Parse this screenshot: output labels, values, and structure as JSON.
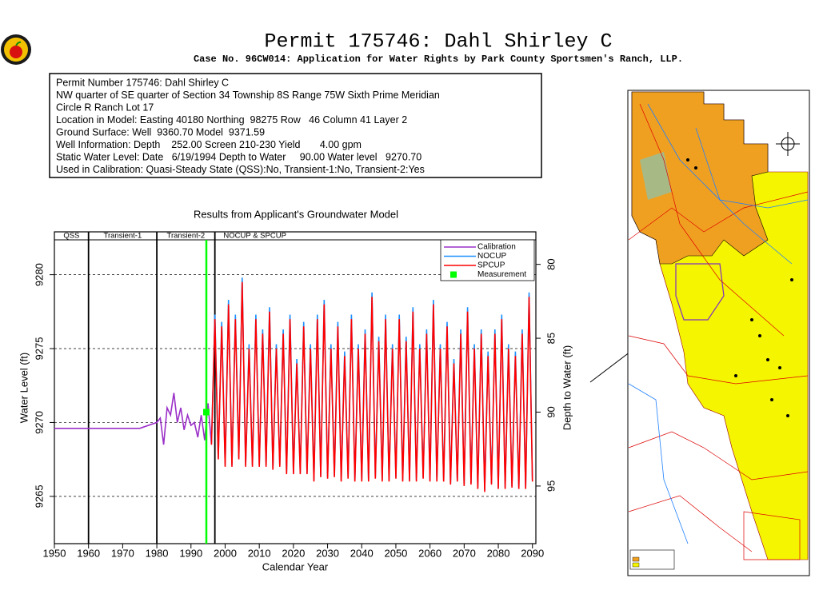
{
  "header": {
    "title": "Permit 175746:  Dahl Shirley C",
    "subtitle": "Case No. 96CW014: Application for Water Rights by Park County Sportsmen's Ranch, LLP."
  },
  "info_box": {
    "lines": [
      "Permit Number 175746: Dahl Shirley C",
      "NW quarter of SE quarter of Section 34 Township 8S Range 75W Sixth Prime Meridian",
      "Circle R Ranch Lot 17",
      "Location in Model: Easting 40180 Northing  98275 Row   46 Column 41 Layer 2",
      "Ground Surface: Well  9360.70 Model  9371.59",
      "Well Information: Depth    252.00 Screen 210-230 Yield       4.00 gpm",
      "Static Water Level: Date   6/19/1994 Depth to Water     90.00 Water level   9270.70",
      "Used in Calibration: Quasi-Steady State (QSS):No, Transient-1:No, Transient-2:Yes"
    ]
  },
  "chart_data": {
    "type": "line",
    "title": "Results from Applicant's Groundwater Model",
    "x_label": "Calendar Year",
    "y_label": "Water Level (ft)",
    "y2_label": "Depth to Water (ft)",
    "xlim": [
      1950,
      2091
    ],
    "xticks": [
      1950,
      1960,
      1970,
      1980,
      1990,
      2000,
      2010,
      2020,
      2030,
      2040,
      2050,
      2060,
      2070,
      2080,
      2090
    ],
    "ylim": [
      9261.8,
      9282.9
    ],
    "yticks": [
      9265,
      9270,
      9275,
      9280
    ],
    "y2lim": [
      98.9,
      77.8
    ],
    "y2ticks": [
      80,
      85,
      90,
      95
    ],
    "grid": true,
    "legend": "top-right",
    "periods": [
      {
        "label": "QSS",
        "start": 1950,
        "end": 1960
      },
      {
        "label": "Transient-1",
        "start": 1960,
        "end": 1980
      },
      {
        "label": "Transient-2",
        "start": 1980,
        "end": 1997
      },
      {
        "label": "NOCUP & SPCUP",
        "start": 1997,
        "end": 2091
      }
    ],
    "x": [
      1996,
      1997,
      1998,
      1999,
      2000,
      2001,
      2002,
      2003,
      2004,
      2005,
      2006,
      2007,
      2008,
      2009,
      2010,
      2011,
      2012,
      2013,
      2014,
      2015,
      2016,
      2017,
      2018,
      2019,
      2020,
      2021,
      2022,
      2023,
      2024,
      2025,
      2026,
      2027,
      2028,
      2029,
      2030,
      2031,
      2032,
      2033,
      2034,
      2035,
      2036,
      2037,
      2038,
      2039,
      2040,
      2041,
      2042,
      2043,
      2044,
      2045,
      2046,
      2047,
      2048,
      2049,
      2050,
      2051,
      2052,
      2053,
      2054,
      2055,
      2056,
      2057,
      2058,
      2059,
      2060,
      2061,
      2062,
      2063,
      2064,
      2065,
      2066,
      2067,
      2068,
      2069,
      2070,
      2071,
      2072,
      2073,
      2074,
      2075,
      2076,
      2077,
      2078,
      2079,
      2080,
      2081,
      2082,
      2083,
      2084,
      2085,
      2086,
      2087,
      2088,
      2089,
      2090
    ],
    "series": [
      {
        "name": "Calibration",
        "color": "#9b30c8",
        "x": [
          1950,
          1975,
          1980,
          1981,
          1982,
          1983,
          1984,
          1985,
          1986,
          1987,
          1988,
          1989,
          1990,
          1991,
          1992,
          1993,
          1994,
          1995,
          1996
        ],
        "values": [
          9269.6,
          9269.6,
          9270,
          9270.3,
          9268.5,
          9271,
          9270.5,
          9272,
          9270,
          9271,
          9269.5,
          9270.5,
          9269.8,
          9270,
          9269,
          9270.5,
          9268.8,
          9271.3,
          9268.5
        ]
      },
      {
        "name": "NOCUP",
        "color": "#1e90ff",
        "values": [
          9268.6,
          9277.3,
          9267.6,
          9276.8,
          9267.1,
          9278.3,
          9267.1,
          9277.3,
          9267.6,
          9279.8,
          9267.1,
          9275.3,
          9267.1,
          9277.3,
          9267.1,
          9276.3,
          9267.1,
          9277.8,
          9266.9,
          9275.3,
          9267.1,
          9276.3,
          9266.6,
          9277.3,
          9266.6,
          9274.3,
          9266.6,
          9276.8,
          9266.6,
          9275.3,
          9266.1,
          9277.3,
          9266.4,
          9278.3,
          9266.3,
          9275.3,
          9266.4,
          9276.8,
          9266.1,
          9274.8,
          9266.3,
          9277.3,
          9266.1,
          9275.3,
          9266.1,
          9276.3,
          9266.1,
          9278.8,
          9266.3,
          9275.8,
          9266.1,
          9277.3,
          9266.1,
          9275.3,
          9266.3,
          9277.3,
          9266.1,
          9275.8,
          9266.1,
          9277.8,
          9266.1,
          9275.3,
          9266.3,
          9276.3,
          9266.1,
          9278.3,
          9266.1,
          9275.3,
          9266.1,
          9276.8,
          9265.9,
          9274.3,
          9266.1,
          9276.3,
          9265.8,
          9277.8,
          9265.9,
          9275.3,
          9265.6,
          9276.3,
          9265.4,
          9274.8,
          9265.9,
          9276.3,
          9265.6,
          9277.3,
          9265.6,
          9275.3,
          9265.7,
          9274.8,
          9265.6,
          9276.3,
          9265.6,
          9278.8,
          9266.1
        ]
      },
      {
        "name": "SPCUP",
        "color": "#ff0000",
        "values": [
          9268.5,
          9277,
          9267.5,
          9276.5,
          9267,
          9278,
          9267,
          9277,
          9267.5,
          9279.5,
          9267,
          9275,
          9267,
          9277,
          9267,
          9276,
          9267,
          9277.5,
          9266.8,
          9275,
          9267,
          9276,
          9266.5,
          9277,
          9266.5,
          9274,
          9266.5,
          9276.5,
          9266.5,
          9275,
          9266,
          9277,
          9266.3,
          9278,
          9266.2,
          9275,
          9266.3,
          9276.5,
          9266,
          9274.5,
          9266.2,
          9277,
          9266,
          9275,
          9266,
          9276,
          9266,
          9278.5,
          9266.2,
          9275.5,
          9266,
          9277,
          9266,
          9275,
          9266.2,
          9277,
          9266,
          9275.5,
          9266,
          9277.5,
          9266,
          9275,
          9266.2,
          9276,
          9266,
          9278,
          9266,
          9275,
          9266,
          9276.5,
          9265.8,
          9274,
          9266,
          9276,
          9265.7,
          9277.5,
          9265.8,
          9275,
          9265.5,
          9276,
          9265.3,
          9274.5,
          9265.8,
          9276,
          9265.5,
          9277,
          9265.5,
          9275,
          9265.6,
          9274.5,
          9265.5,
          9276,
          9265.5,
          9278.5,
          9266
        ]
      },
      {
        "name": "Measurement",
        "color": "#00ff00",
        "marker": "square",
        "x": [
          1994.5
        ],
        "values": [
          9270.7
        ]
      }
    ]
  }
}
